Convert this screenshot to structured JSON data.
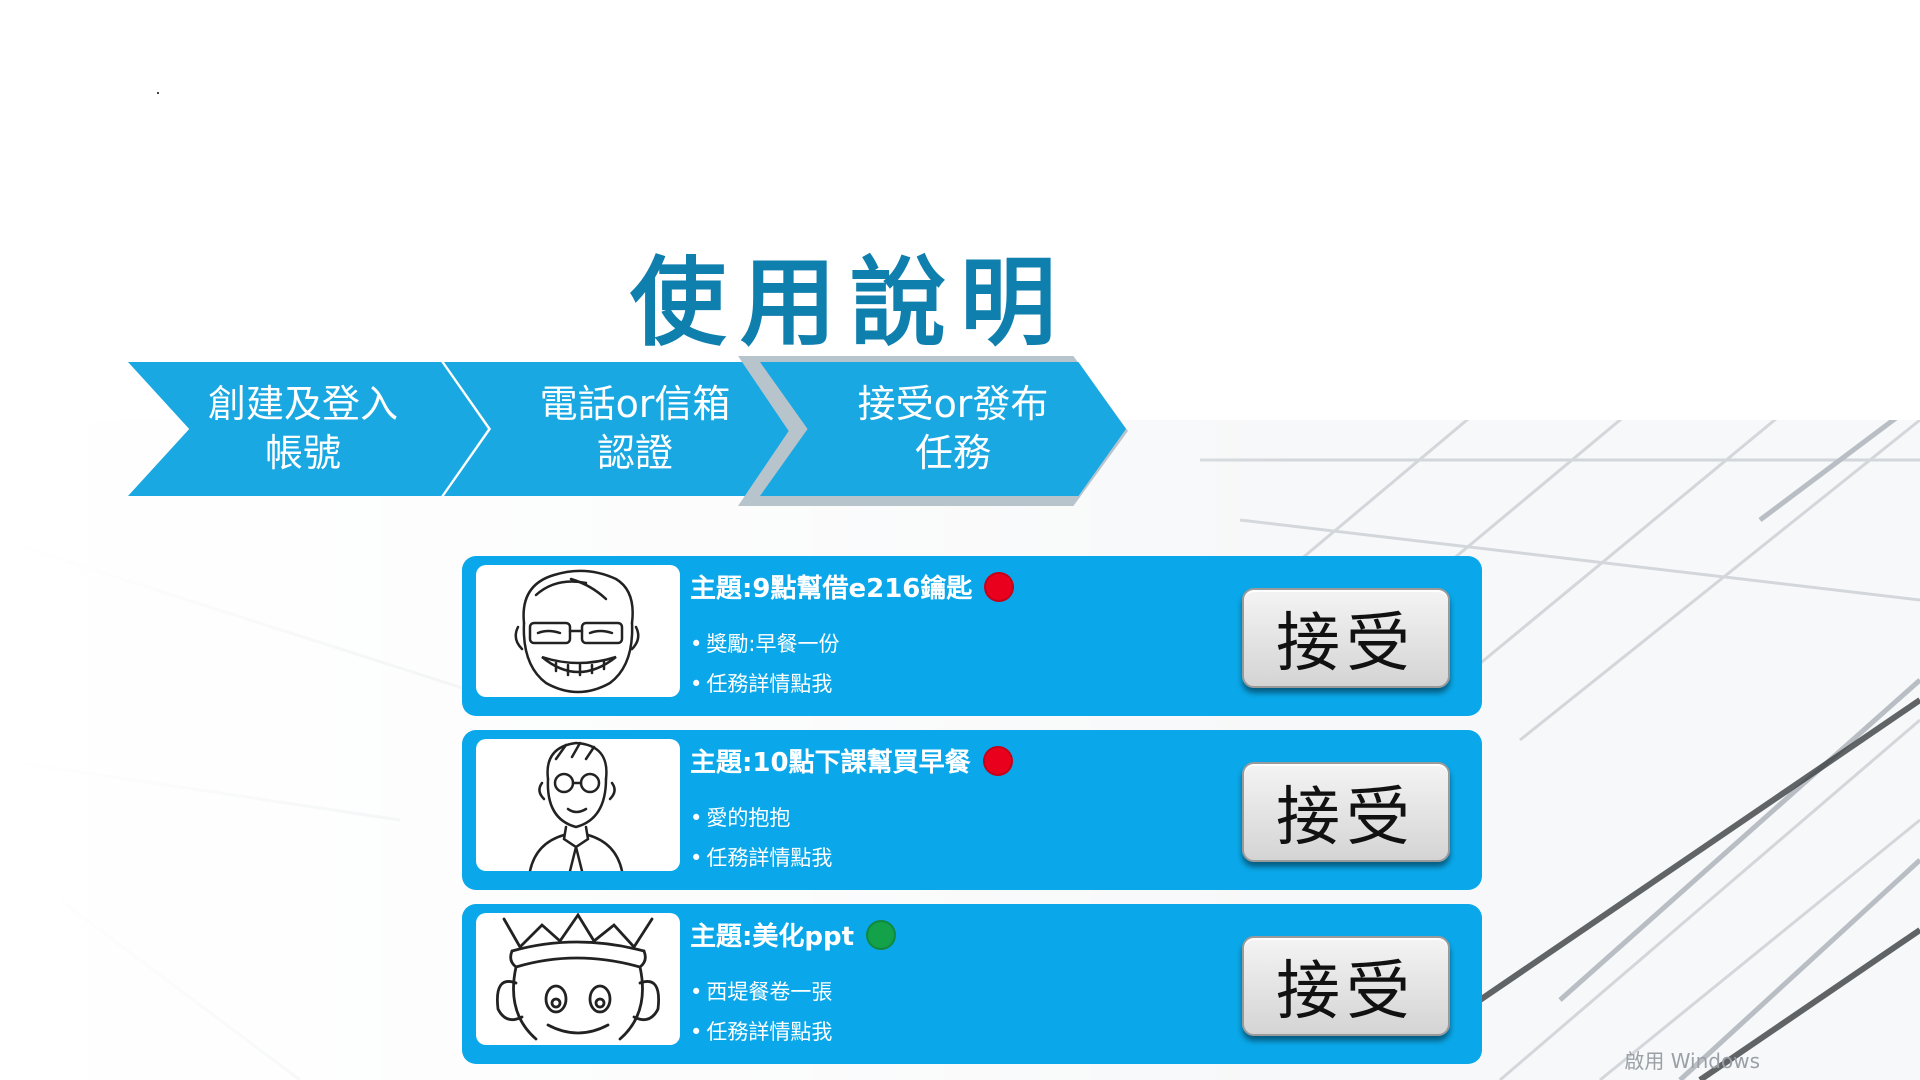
{
  "title": "使用說明",
  "steps": [
    {
      "line1": "創建及登入",
      "line2": "帳號"
    },
    {
      "line1": "電話or信箱",
      "line2": "認證"
    },
    {
      "line1": "接受or發布",
      "line2": "任務"
    }
  ],
  "tasks": [
    {
      "subject": "主題:9點幫借e216鑰匙",
      "status_color": "#e8001c",
      "bullet1": "獎勵:早餐一份",
      "bullet2": "任務詳情點我",
      "button": "接受"
    },
    {
      "subject": "主題:10點下課幫買早餐",
      "status_color": "#e8001c",
      "bullet1": "愛的抱抱",
      "bullet2": "任務詳情點我",
      "button": "接受"
    },
    {
      "subject": "主題:美化ppt",
      "status_color": "#13a14a",
      "bullet1": "西堤餐卷一張",
      "bullet2": "任務詳情點我",
      "button": "接受"
    }
  ],
  "watermark": "啟用 Windows"
}
